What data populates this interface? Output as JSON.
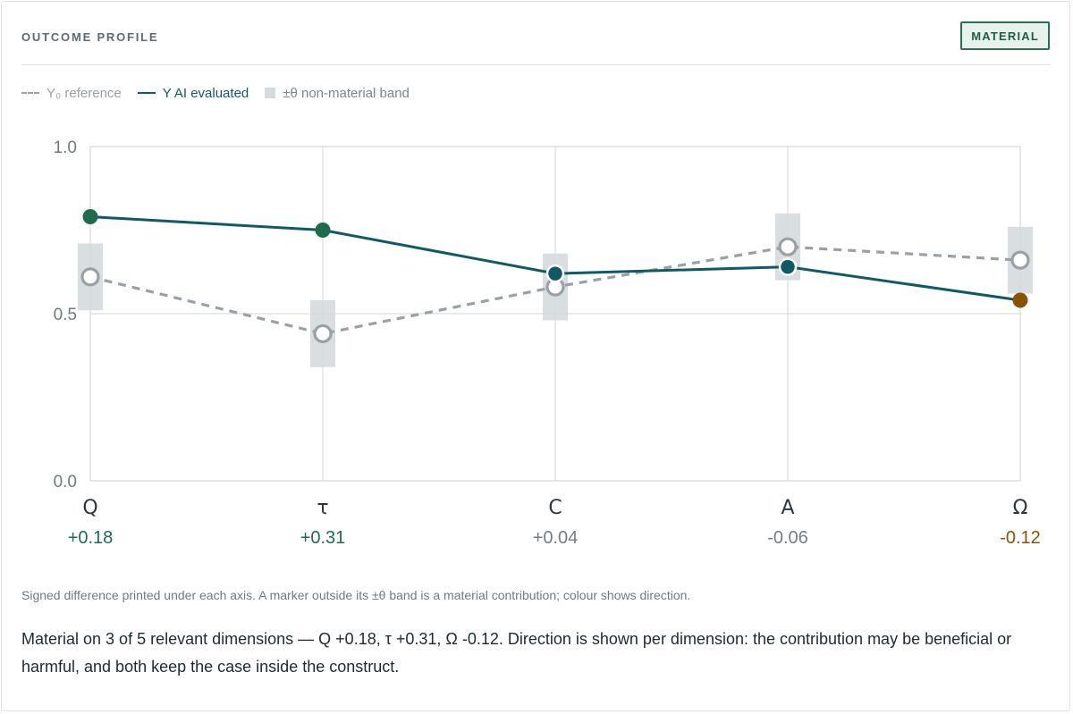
{
  "header": {
    "title": "OUTCOME PROFILE",
    "badge": "MATERIAL"
  },
  "legend": {
    "reference": "Y₀ reference",
    "evaluated": "Y AI evaluated",
    "band": "±θ non-material band"
  },
  "colors": {
    "positive": "#1f6b4e",
    "neutral": "#0f5a66",
    "negative": "#8a5207",
    "reference": "#9aa1a6",
    "band": "#d5dadd",
    "grid": "#d8dde0",
    "neutral_label": "#737d83"
  },
  "chart_data": {
    "type": "line",
    "title": "",
    "xlabel": "",
    "ylabel": "",
    "categories": [
      "Q",
      "τ",
      "C",
      "A",
      "Ω"
    ],
    "ylim": [
      0,
      1
    ],
    "yticks": [
      "0.0",
      "0.5",
      "1.0"
    ],
    "grid": true,
    "legend_position": "top-left",
    "series": [
      {
        "name": "Y₀ reference",
        "style": "dashed",
        "values": [
          0.61,
          0.44,
          0.58,
          0.7,
          0.66
        ]
      },
      {
        "name": "Y AI evaluated",
        "style": "solid",
        "values": [
          0.79,
          0.75,
          0.62,
          0.64,
          0.54
        ]
      }
    ],
    "band_half_width": 0.1,
    "differences": [
      "+0.18",
      "+0.31",
      "+0.04",
      "-0.06",
      "-0.12"
    ],
    "direction": [
      "positive",
      "positive",
      "neutral",
      "neutral",
      "negative"
    ]
  },
  "caption": "Signed difference printed under each axis. A marker outside its ±θ band is a material contribution; colour shows direction.",
  "summary": "Material on 3 of 5 relevant dimensions — Q +0.18, τ +0.31, Ω -0.12. Direction is shown per dimension: the contribution may be beneficial or harmful, and both keep the case inside the construct."
}
